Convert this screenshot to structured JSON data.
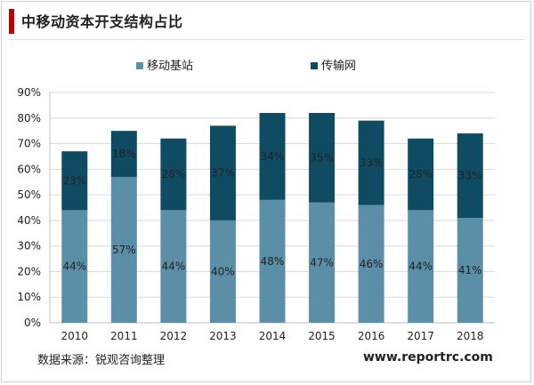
{
  "title": "中移动资本开支结构占比",
  "source": "数据来源：锐观咨询整理",
  "website": "www.reportrc.com",
  "colors": {
    "series1": "#5b8fa8",
    "series2": "#0f4c64",
    "grid": "#d9d9d9",
    "axis": "#bfbfbf"
  },
  "chart_data": {
    "type": "bar",
    "stacked": true,
    "categories": [
      "2010",
      "2011",
      "2012",
      "2013",
      "2014",
      "2015",
      "2016",
      "2017",
      "2018"
    ],
    "series": [
      {
        "name": "移动基站",
        "values": [
          44,
          57,
          44,
          40,
          48,
          47,
          46,
          44,
          41
        ],
        "labels": [
          "44%",
          "57%",
          "44%",
          "40%",
          "48%",
          "47%",
          "46%",
          "44%",
          "41%"
        ]
      },
      {
        "name": "传输网",
        "values": [
          23,
          18,
          28,
          37,
          34,
          35,
          33,
          28,
          33
        ],
        "labels": [
          "23%",
          "18%",
          "28%",
          "37%",
          "34%",
          "35%",
          "33%",
          "28%",
          "33%"
        ]
      }
    ],
    "ylim": [
      0,
      90
    ],
    "yticks": [
      "0%",
      "10%",
      "20%",
      "30%",
      "40%",
      "50%",
      "60%",
      "70%",
      "80%",
      "90%"
    ],
    "grid": true,
    "legend": "top"
  }
}
